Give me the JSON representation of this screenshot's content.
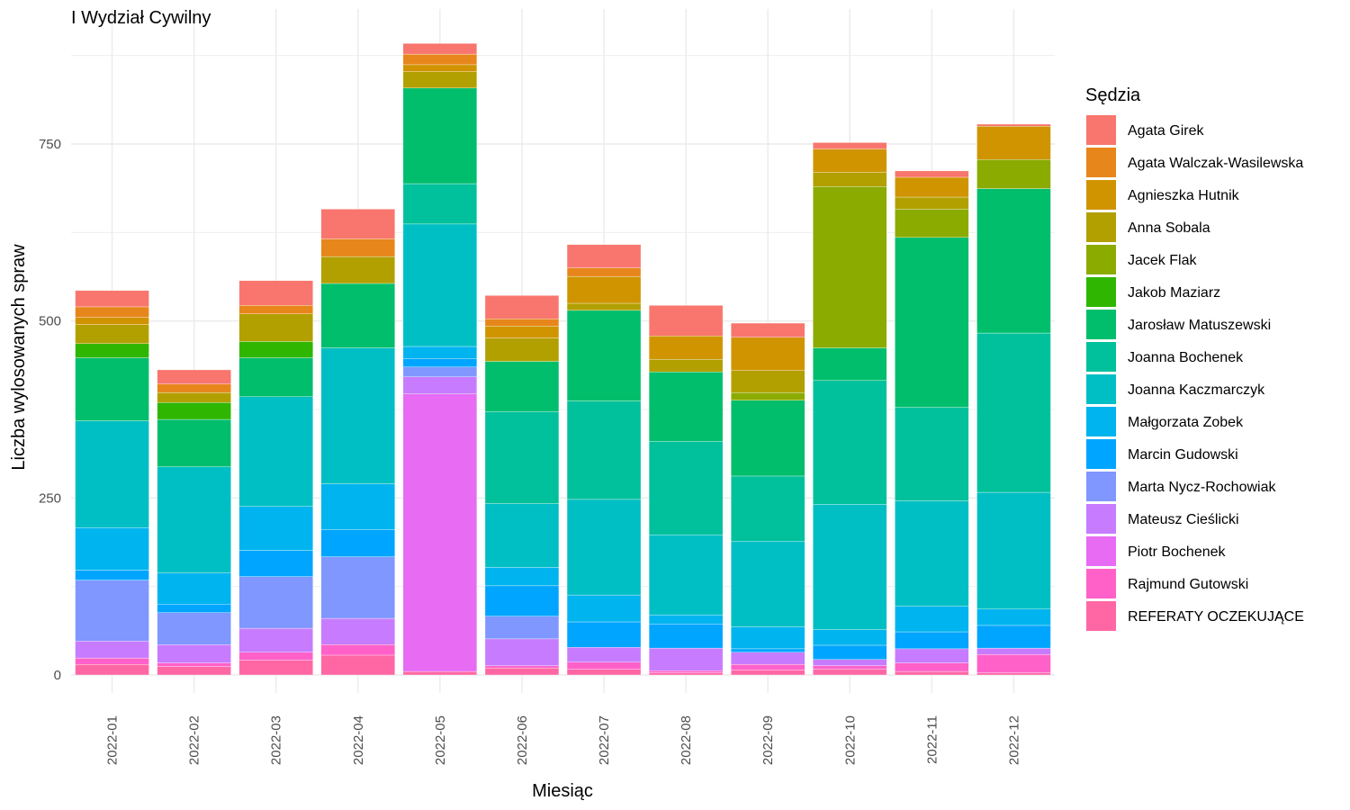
{
  "chart_data": {
    "type": "bar",
    "stacked": true,
    "title": "I Wydział Cywilny",
    "xlabel": "Miesiąc",
    "ylabel": "Liczba wylosowanych spraw",
    "ylim": [
      0,
      900
    ],
    "yticks": [
      0,
      250,
      500,
      750
    ],
    "grid": true,
    "legend_title": "Sędzia",
    "legend_position": "right",
    "categories": [
      "2022-01",
      "2022-02",
      "2022-03",
      "2022-04",
      "2022-05",
      "2022-06",
      "2022-07",
      "2022-08",
      "2022-09",
      "2022-10",
      "2022-11",
      "2022-12"
    ],
    "series": [
      {
        "name": "Agata Girek",
        "color": "#F8766D",
        "values": [
          23,
          20,
          35,
          42,
          15,
          33,
          33,
          43,
          20,
          9,
          9,
          3
        ]
      },
      {
        "name": "Agata Walczak-Wasilewska",
        "color": "#E7861B",
        "values": [
          15,
          12,
          12,
          25,
          15,
          10,
          12,
          0,
          0,
          0,
          0,
          0
        ]
      },
      {
        "name": "Agnieszka Hutnik",
        "color": "#D09400",
        "values": [
          10,
          0,
          0,
          0,
          10,
          17,
          38,
          33,
          47,
          33,
          28,
          47
        ]
      },
      {
        "name": "Anna Sobala",
        "color": "#B2A000",
        "values": [
          27,
          14,
          39,
          38,
          23,
          33,
          10,
          18,
          31,
          20,
          17,
          0
        ]
      },
      {
        "name": "Jacek Flak",
        "color": "#8BAB00",
        "values": [
          0,
          0,
          0,
          0,
          0,
          0,
          0,
          0,
          11,
          228,
          40,
          41
        ]
      },
      {
        "name": "Jakob Maziarz",
        "color": "#2FB600",
        "values": [
          20,
          24,
          23,
          0,
          0,
          0,
          0,
          0,
          0,
          0,
          0,
          0
        ]
      },
      {
        "name": "Jarosław Matuszewski",
        "color": "#00BE6C",
        "values": [
          89,
          67,
          55,
          91,
          135,
          71,
          128,
          98,
          107,
          46,
          240,
          204
        ]
      },
      {
        "name": "Joanna Bochenek",
        "color": "#00C19C",
        "values": [
          0,
          0,
          0,
          0,
          57,
          130,
          139,
          132,
          92,
          175,
          132,
          225
        ]
      },
      {
        "name": "Joanna Kaczmarczyk",
        "color": "#00BFC4",
        "values": [
          151,
          150,
          155,
          192,
          173,
          90,
          135,
          113,
          121,
          177,
          149,
          165
        ]
      },
      {
        "name": "Małgorzata Zobek",
        "color": "#00B4EF",
        "values": [
          60,
          44,
          62,
          65,
          17,
          26,
          38,
          13,
          31,
          22,
          36,
          23
        ]
      },
      {
        "name": "Marcin Gudowski",
        "color": "#00A5FF",
        "values": [
          14,
          12,
          37,
          38,
          12,
          43,
          36,
          34,
          5,
          20,
          24,
          32
        ]
      },
      {
        "name": "Marta Nycz-Rochowiak",
        "color": "#7F97FF",
        "values": [
          86,
          45,
          73,
          87,
          14,
          32,
          0,
          0,
          0,
          0,
          0,
          0
        ]
      },
      {
        "name": "Mateusz Cieślicki",
        "color": "#C77CFF",
        "values": [
          24,
          26,
          34,
          37,
          24,
          38,
          21,
          32,
          17,
          9,
          20,
          9
        ]
      },
      {
        "name": "Piotr Bochenek",
        "color": "#E76BF3",
        "values": [
          0,
          0,
          0,
          0,
          392,
          0,
          0,
          0,
          0,
          0,
          0,
          0
        ]
      },
      {
        "name": "Rajmund Gutowski",
        "color": "#FF61C9",
        "values": [
          9,
          5,
          11,
          15,
          0,
          3,
          10,
          3,
          8,
          5,
          12,
          26
        ]
      },
      {
        "name": "REFERATY OCZEKUJĄCE",
        "color": "#FF67A4",
        "values": [
          15,
          12,
          21,
          28,
          5,
          10,
          8,
          3,
          7,
          8,
          5,
          3
        ]
      }
    ]
  }
}
